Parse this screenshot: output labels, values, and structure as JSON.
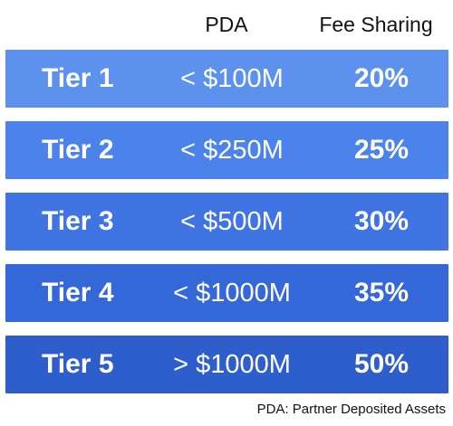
{
  "header": {
    "pda_label": "PDA",
    "fee_label": "Fee Sharing"
  },
  "tiers": [
    {
      "name": "Tier 1",
      "pda": "< $100M",
      "fee": "20%",
      "color": "#5c91ee"
    },
    {
      "name": "Tier 2",
      "pda": "< $250M",
      "fee": "25%",
      "color": "#4c83ea"
    },
    {
      "name": "Tier 3",
      "pda": "< $500M",
      "fee": "30%",
      "color": "#3f74e2"
    },
    {
      "name": "Tier 4",
      "pda": "< $1000M",
      "fee": "35%",
      "color": "#3467d8"
    },
    {
      "name": "Tier 5",
      "pda": "> $1000M",
      "fee": "50%",
      "color": "#2e5dcc"
    }
  ],
  "footnote": "PDA: Partner Deposited Assets"
}
